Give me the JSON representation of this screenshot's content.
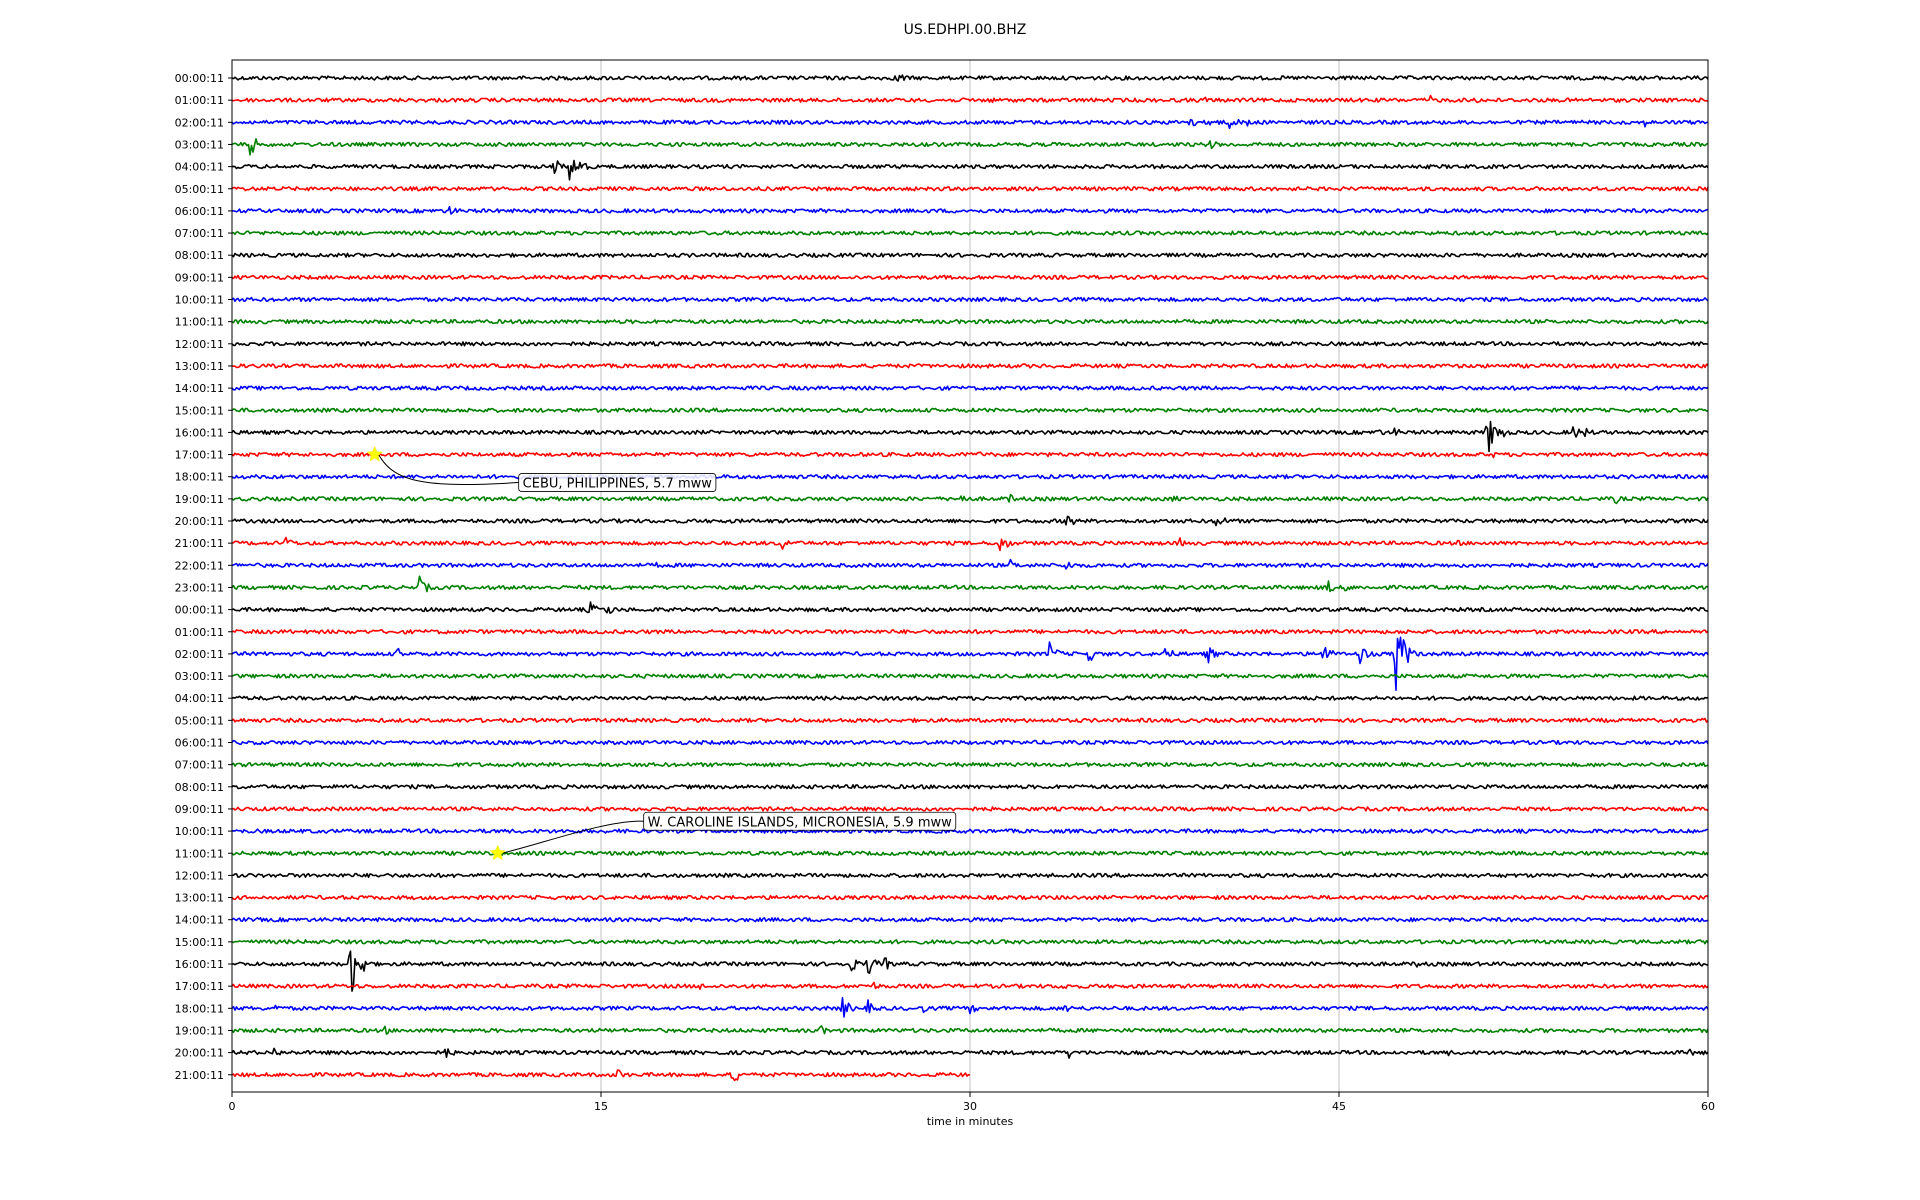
{
  "chart_data": {
    "type": "line",
    "title": "US.EDHPI.00.BHZ",
    "xlabel": "time in minutes",
    "ylabel": "",
    "xlim": [
      0,
      60
    ],
    "xticks": [
      0,
      15,
      30,
      45,
      60
    ],
    "xtick_labels": [
      "0",
      "15",
      "30",
      "45",
      "60"
    ],
    "grid": "vertical",
    "trace_colors": [
      "#000000",
      "#ff0000",
      "#0000ff",
      "#008000"
    ],
    "rows": [
      {
        "label": "00:00:11",
        "end": 60,
        "events": [
          [
            27,
            9
          ]
        ]
      },
      {
        "label": "01:00:11",
        "end": 60,
        "events": [
          [
            30.6,
            6
          ],
          [
            39.5,
            4
          ],
          [
            48.7,
            5
          ],
          [
            50.3,
            7
          ]
        ]
      },
      {
        "label": "02:00:11",
        "end": 60,
        "events": [
          [
            38.8,
            10
          ],
          [
            39.7,
            10
          ],
          [
            40.5,
            10
          ],
          [
            41.2,
            7
          ],
          [
            57.4,
            5
          ]
        ]
      },
      {
        "label": "03:00:11",
        "end": 60,
        "events": [
          [
            0.7,
            14
          ],
          [
            39.7,
            7
          ]
        ]
      },
      {
        "label": "04:00:11",
        "end": 60,
        "events": [
          [
            13,
            12
          ],
          [
            13.7,
            16
          ],
          [
            14.1,
            10
          ]
        ]
      },
      {
        "label": "05:00:11",
        "end": 60,
        "events": []
      },
      {
        "label": "06:00:11",
        "end": 60,
        "events": [
          [
            8.8,
            7
          ]
        ]
      },
      {
        "label": "07:00:11",
        "end": 60,
        "events": []
      },
      {
        "label": "08:00:11",
        "end": 60,
        "events": []
      },
      {
        "label": "09:00:11",
        "end": 60,
        "events": []
      },
      {
        "label": "10:00:11",
        "end": 60,
        "events": []
      },
      {
        "label": "11:00:11",
        "end": 60,
        "events": []
      },
      {
        "label": "12:00:11",
        "end": 60,
        "events": []
      },
      {
        "label": "13:00:11",
        "end": 60,
        "events": []
      },
      {
        "label": "14:00:11",
        "end": 60,
        "events": []
      },
      {
        "label": "15:00:11",
        "end": 60,
        "events": []
      },
      {
        "label": "16:00:11",
        "end": 60,
        "events": [
          [
            46.5,
            6
          ],
          [
            47.2,
            6
          ],
          [
            51,
            28
          ],
          [
            51.6,
            7
          ],
          [
            54.5,
            8
          ],
          [
            55,
            6
          ]
        ]
      },
      {
        "label": "17:00:11",
        "end": 60,
        "events": [
          [
            30.3,
            4
          ],
          [
            51.2,
            4
          ]
        ]
      },
      {
        "label": "18:00:11",
        "end": 60,
        "events": [
          [
            1.8,
            3
          ]
        ]
      },
      {
        "label": "19:00:11",
        "end": 60,
        "events": [
          [
            29.6,
            7
          ],
          [
            31.5,
            7
          ],
          [
            38.2,
            5
          ],
          [
            56.2,
            6
          ]
        ]
      },
      {
        "label": "20:00:11",
        "end": 60,
        "events": [
          [
            33.9,
            10
          ],
          [
            40,
            10
          ]
        ]
      },
      {
        "label": "21:00:11",
        "end": 60,
        "events": [
          [
            2.1,
            9
          ],
          [
            22.3,
            9
          ],
          [
            31.2,
            12
          ],
          [
            38.5,
            6
          ],
          [
            49.7,
            5
          ]
        ]
      },
      {
        "label": "22:00:11",
        "end": 60,
        "events": [
          [
            17.2,
            4
          ],
          [
            31.6,
            7
          ],
          [
            33.9,
            6
          ]
        ]
      },
      {
        "label": "23:00:11",
        "end": 60,
        "events": [
          [
            7.6,
            12
          ],
          [
            44.4,
            12
          ],
          [
            45.2,
            6
          ]
        ]
      },
      {
        "label": "00:00:11",
        "end": 60,
        "events": [
          [
            14.5,
            10
          ],
          [
            15.2,
            8
          ]
        ]
      },
      {
        "label": "01:00:11",
        "end": 60,
        "events": []
      },
      {
        "label": "02:00:11",
        "end": 60,
        "events": [
          [
            6.7,
            7
          ],
          [
            33.2,
            14
          ],
          [
            34.8,
            10
          ],
          [
            37.9,
            10
          ],
          [
            39.6,
            12
          ],
          [
            44.3,
            14
          ],
          [
            45.8,
            14
          ],
          [
            47.3,
            44
          ]
        ]
      },
      {
        "label": "03:00:11",
        "end": 60,
        "events": []
      },
      {
        "label": "04:00:11",
        "end": 60,
        "events": []
      },
      {
        "label": "05:00:11",
        "end": 60,
        "events": []
      },
      {
        "label": "06:00:11",
        "end": 60,
        "events": []
      },
      {
        "label": "07:00:11",
        "end": 60,
        "events": []
      },
      {
        "label": "08:00:11",
        "end": 60,
        "events": []
      },
      {
        "label": "09:00:11",
        "end": 60,
        "events": []
      },
      {
        "label": "10:00:11",
        "end": 60,
        "events": []
      },
      {
        "label": "11:00:11",
        "end": 60,
        "events": []
      },
      {
        "label": "12:00:11",
        "end": 60,
        "events": []
      },
      {
        "label": "13:00:11",
        "end": 60,
        "events": []
      },
      {
        "label": "14:00:11",
        "end": 60,
        "events": []
      },
      {
        "label": "15:00:11",
        "end": 60,
        "events": []
      },
      {
        "label": "16:00:11",
        "end": 60,
        "events": [
          [
            4.8,
            40
          ],
          [
            5.3,
            10
          ],
          [
            25.1,
            10
          ],
          [
            25.8,
            14
          ],
          [
            26.5,
            8
          ],
          [
            45.7,
            6
          ],
          [
            48.1,
            5
          ]
        ]
      },
      {
        "label": "17:00:11",
        "end": 60,
        "events": [
          [
            19,
            4
          ],
          [
            26,
            6
          ],
          [
            33.6,
            7
          ]
        ]
      },
      {
        "label": "18:00:11",
        "end": 60,
        "events": [
          [
            1.7,
            5
          ],
          [
            24.8,
            12
          ],
          [
            25.8,
            10
          ],
          [
            28,
            6
          ],
          [
            30,
            6
          ],
          [
            33.8,
            7
          ]
        ]
      },
      {
        "label": "19:00:11",
        "end": 60,
        "events": [
          [
            6.2,
            5
          ],
          [
            23.8,
            8
          ]
        ]
      },
      {
        "label": "20:00:11",
        "end": 60,
        "events": [
          [
            1.7,
            6
          ],
          [
            8.6,
            9
          ],
          [
            34,
            6
          ],
          [
            49.3,
            5
          ],
          [
            59.2,
            5
          ]
        ]
      },
      {
        "label": "21:00:11",
        "end": 30,
        "events": [
          [
            15.6,
            8
          ],
          [
            20.3,
            12
          ]
        ]
      }
    ],
    "annotations": [
      {
        "row": 17,
        "x": 5.8,
        "text": "CEBU, PHILIPPINES, 5.7 mww"
      },
      {
        "row": 35,
        "x": 10.8,
        "text": "W. CAROLINE ISLANDS, MICRONESIA, 5.9 mww"
      }
    ]
  }
}
